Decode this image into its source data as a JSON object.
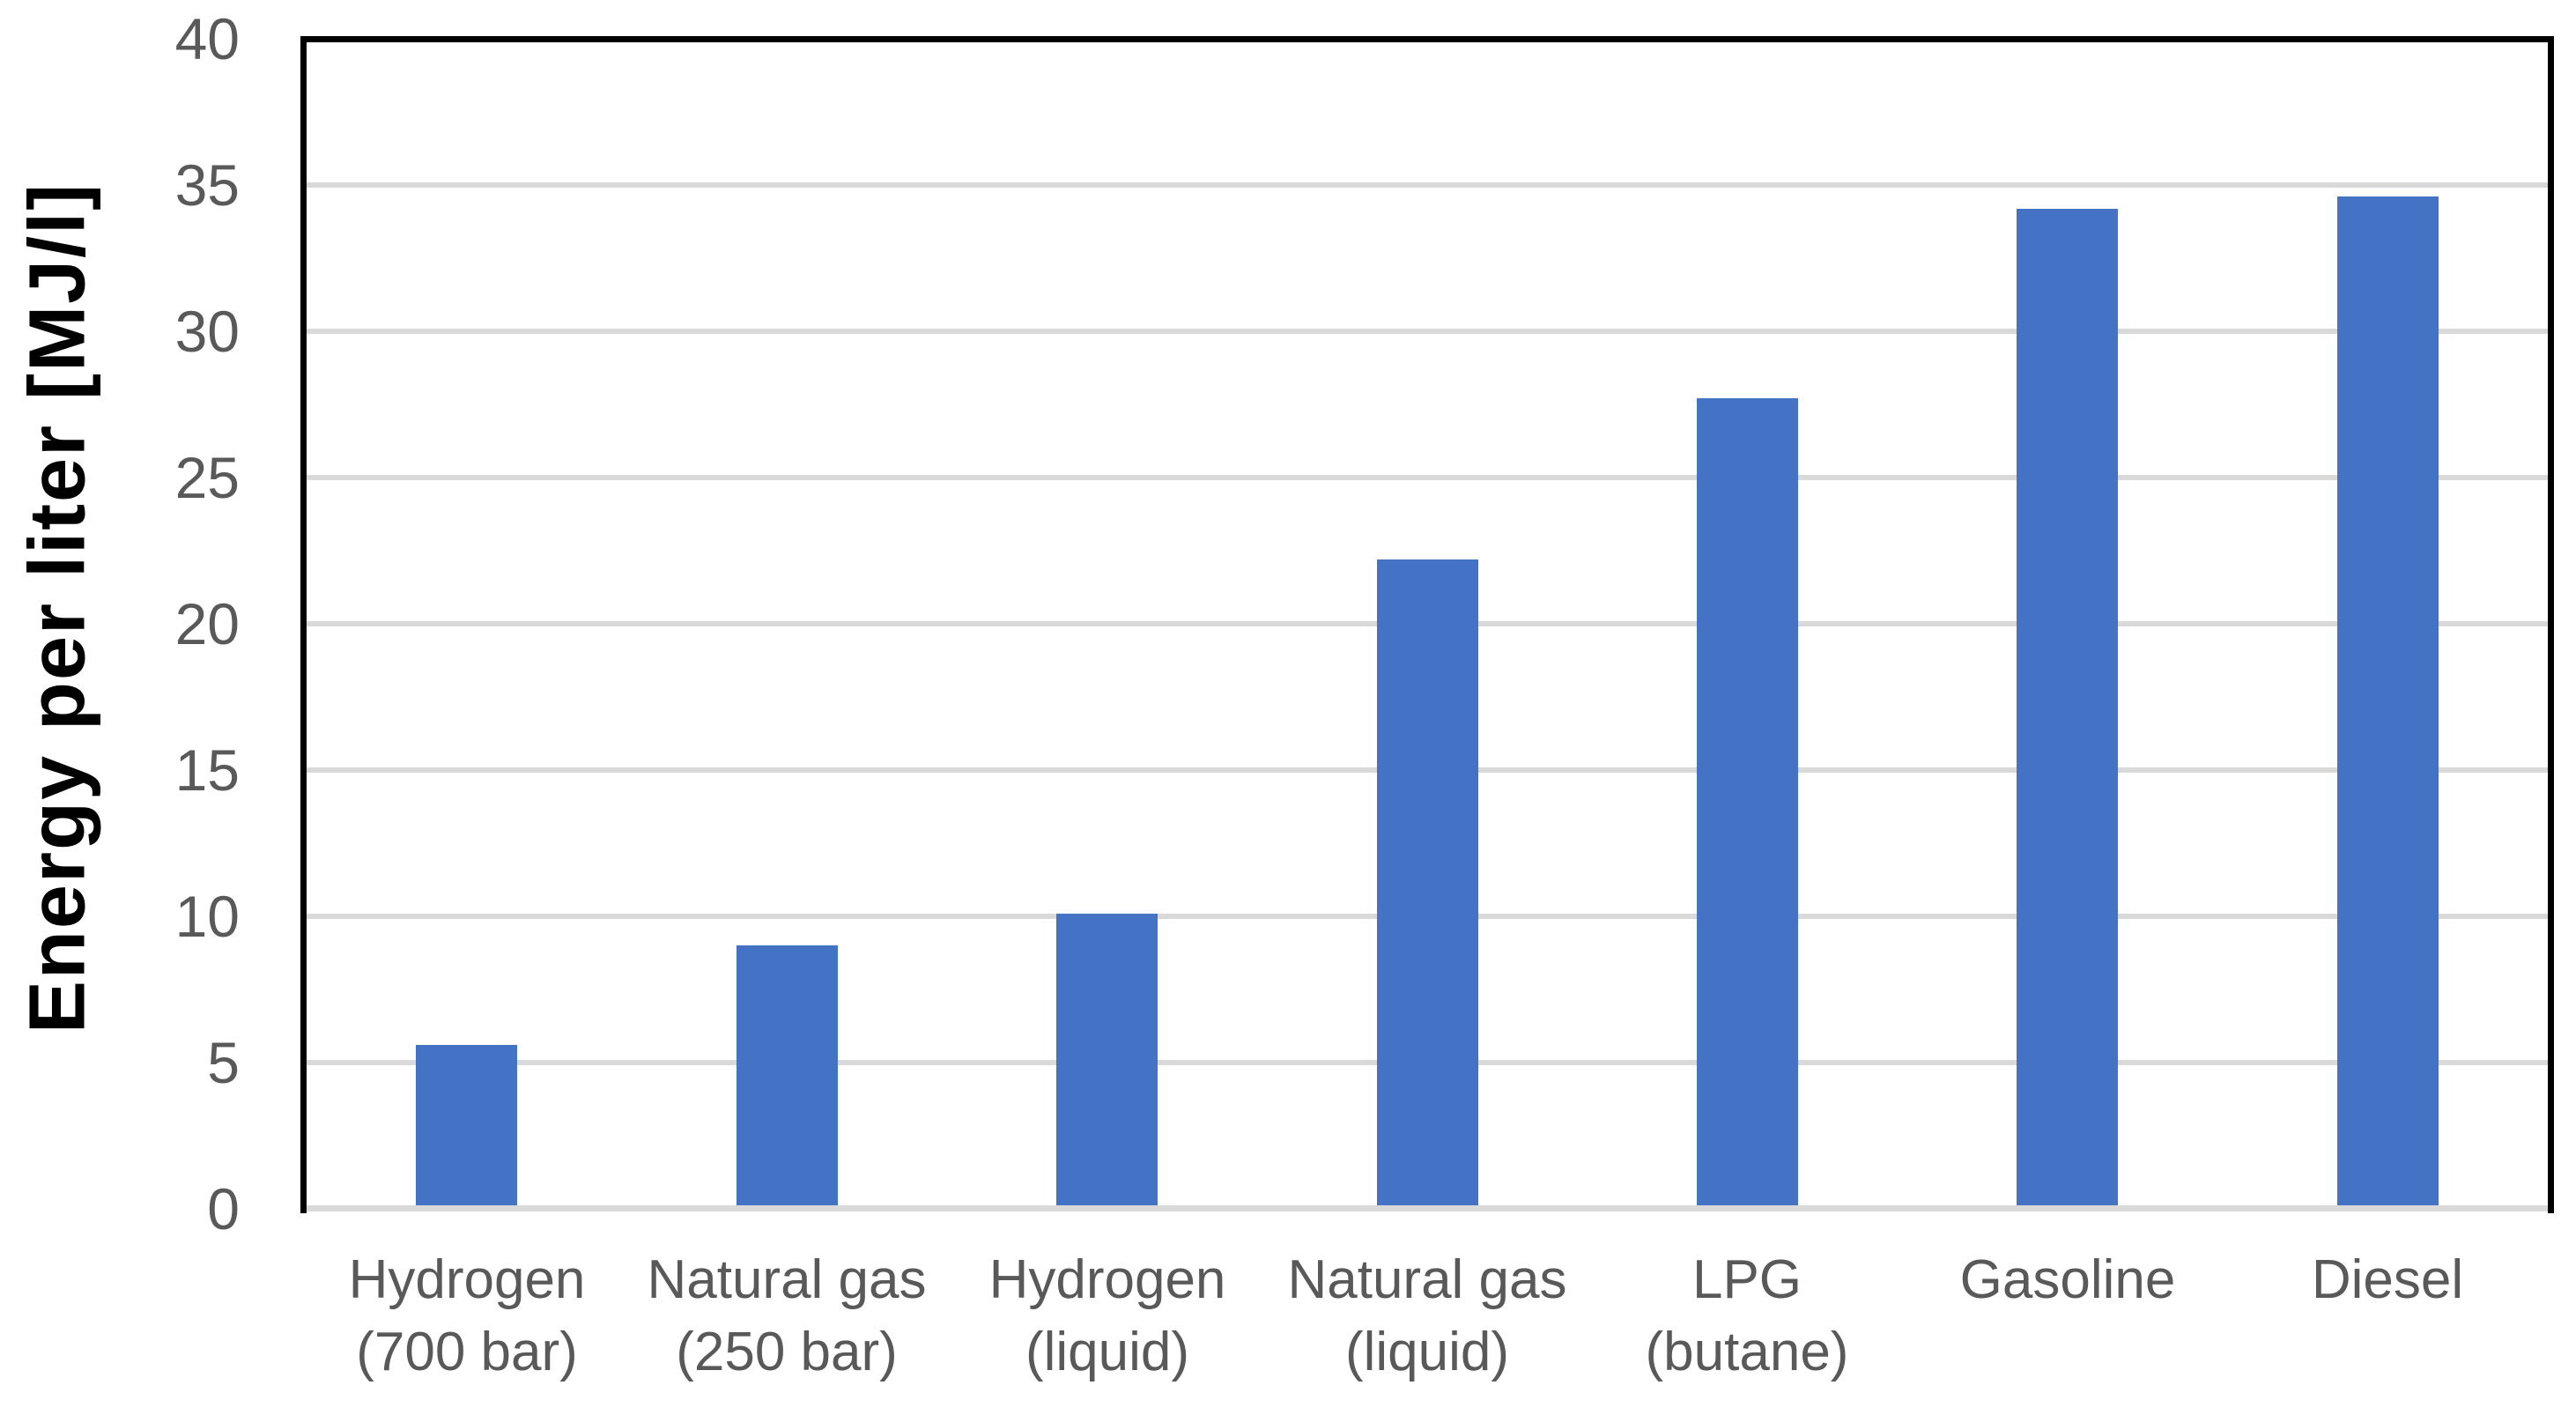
{
  "chart_data": {
    "type": "bar",
    "title": "",
    "xlabel": "",
    "ylabel": "Energy per liter [MJ/l]",
    "categories": [
      "Hydrogen\n(700 bar)",
      "Natural gas\n(250 bar)",
      "Hydrogen\n(liquid)",
      "Natural gas\n(liquid)",
      "LPG (butane)",
      "Gasoline",
      "Diesel"
    ],
    "values": [
      5.6,
      9.0,
      10.1,
      22.2,
      27.7,
      34.2,
      34.6
    ],
    "ylim": [
      0,
      40
    ],
    "yticks": [
      0,
      5,
      10,
      15,
      20,
      25,
      30,
      35,
      40
    ],
    "grid": true,
    "legend_position": "none",
    "bar_color": "#4472C4",
    "gridline_color": "#D9D9D9",
    "zero_line_color": "#D9D9D9",
    "axis_border_color": "#000000",
    "tick_label_color": "#595959",
    "axis_title_color": "#000000"
  }
}
